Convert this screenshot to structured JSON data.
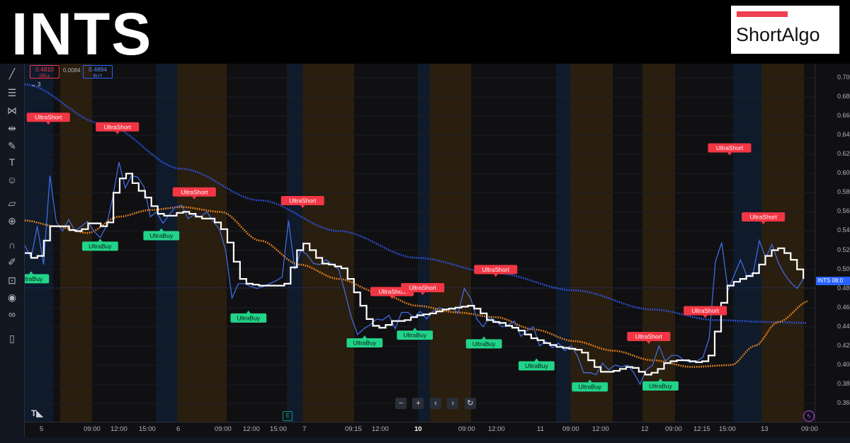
{
  "header": {
    "title": "INTS",
    "logo_text": "ShortAlgo"
  },
  "colors": {
    "ultra_short": "#f23645",
    "ultra_buy": "#22d38a",
    "white_line": "#ffffff",
    "blue_line": "#3f6be0",
    "orange_ma": "#f2891f",
    "blue_ma": "#2f55e5",
    "session_amber": "#2a1e0e",
    "session_blue": "#0f1a2b"
  },
  "trade_panel": {
    "sell_price": "0.4810",
    "sell_label": "SELL",
    "spread": "0.0084",
    "buy_price": "0.4894",
    "buy_label": "BUY",
    "indicators_count": "3"
  },
  "price_label": {
    "symbol": "INTS",
    "value": "08:0"
  },
  "chart_controls": [
    "−",
    "+",
    "‹",
    "›",
    "↻"
  ],
  "toolbar_icons": [
    "crosshair-icon",
    "trendline-icon",
    "fib-icon",
    "pattern-icon",
    "measure-icon",
    "brush-icon",
    "text-icon",
    "emoji-icon",
    "ruler-icon",
    "zoom-icon",
    "magnet-icon",
    "lock-drawing-icon",
    "lock-icon",
    "eye-icon",
    "link-icon",
    "trash-icon"
  ],
  "chart_data": {
    "type": "line",
    "y_ticks": [
      "0.700",
      "0.680",
      "0.660",
      "0.640",
      "0.620",
      "0.600",
      "0.580",
      "0.560",
      "0.540",
      "0.520",
      "0.500",
      "0.480",
      "0.460",
      "0.440",
      "0.420",
      "0.400",
      "0.380",
      "0.360"
    ],
    "ylim": [
      0.35,
      0.71
    ],
    "x_ticks": [
      {
        "label": "5",
        "bold": false
      },
      {
        "label": "09:00",
        "bold": false
      },
      {
        "label": "12:00",
        "bold": false
      },
      {
        "label": "15:00",
        "bold": false
      },
      {
        "label": "6",
        "bold": false
      },
      {
        "label": "09:00",
        "bold": false
      },
      {
        "label": "12:00",
        "bold": false
      },
      {
        "label": "15:00",
        "bold": false
      },
      {
        "label": "7",
        "bold": false
      },
      {
        "label": "09:15",
        "bold": false
      },
      {
        "label": "12:00",
        "bold": false
      },
      {
        "label": "10",
        "bold": true
      },
      {
        "label": "09:00",
        "bold": false
      },
      {
        "label": "12:00",
        "bold": false
      },
      {
        "label": "11",
        "bold": false
      },
      {
        "label": "09:00",
        "bold": false
      },
      {
        "label": "12:00",
        "bold": false
      },
      {
        "label": "12",
        "bold": false
      },
      {
        "label": "09:00",
        "bold": false
      },
      {
        "label": "12:15",
        "bold": false
      },
      {
        "label": "15:00",
        "bold": false
      },
      {
        "label": "13",
        "bold": false
      },
      {
        "label": "09:00",
        "bold": false
      }
    ],
    "series": [
      {
        "key": "price",
        "values": [
          0.525,
          0.512,
          0.545,
          0.505,
          0.598,
          0.55,
          0.54,
          0.552,
          0.54,
          0.545,
          0.55,
          0.54,
          0.533,
          0.545,
          0.575,
          0.612,
          0.585,
          0.598,
          0.596,
          0.586,
          0.555,
          0.56,
          0.548,
          0.557,
          0.565,
          0.567,
          0.553,
          0.557,
          0.555,
          0.56,
          0.55,
          0.542,
          0.52,
          0.47,
          0.485,
          0.485,
          0.482,
          0.48,
          0.482,
          0.485,
          0.488,
          0.492,
          0.551,
          0.5,
          0.52,
          0.515,
          0.506,
          0.505,
          0.51,
          0.505,
          0.5,
          0.476,
          0.45,
          0.432,
          0.438,
          0.442,
          0.448,
          0.447,
          0.452,
          0.438,
          0.455,
          0.455,
          0.45,
          0.456,
          0.448,
          0.456,
          0.46,
          0.458,
          0.46,
          0.454,
          0.48,
          0.47,
          0.448,
          0.44,
          0.45,
          0.446,
          0.44,
          0.442,
          0.446,
          0.43,
          0.436,
          0.44,
          0.42,
          0.425,
          0.418,
          0.423,
          0.415,
          0.42,
          0.41,
          0.392,
          0.392,
          0.39,
          0.402,
          0.395,
          0.4,
          0.398,
          0.4,
          0.392,
          0.38,
          0.395,
          0.4,
          0.42,
          0.404,
          0.41,
          0.41,
          0.405,
          0.403,
          0.404,
          0.408,
          0.428,
          0.508,
          0.528,
          0.478,
          0.494,
          0.51,
          0.493,
          0.496,
          0.53,
          0.512,
          0.526,
          0.507,
          0.495,
          0.486,
          0.48,
          0.49
        ]
      },
      {
        "key": "smooth",
        "values": [
          0.517,
          0.512,
          0.514,
          0.53,
          0.545,
          0.545,
          0.545,
          0.541,
          0.54,
          0.542,
          0.548,
          0.548,
          0.545,
          0.549,
          0.58,
          0.595,
          0.6,
          0.59,
          0.582,
          0.575,
          0.566,
          0.558,
          0.556,
          0.556,
          0.559,
          0.56,
          0.558,
          0.555,
          0.553,
          0.553,
          0.549,
          0.542,
          0.528,
          0.508,
          0.49,
          0.485,
          0.484,
          0.483,
          0.483,
          0.483,
          0.483,
          0.485,
          0.502,
          0.52,
          0.527,
          0.52,
          0.512,
          0.506,
          0.505,
          0.503,
          0.501,
          0.49,
          0.476,
          0.462,
          0.448,
          0.441,
          0.439,
          0.442,
          0.446,
          0.446,
          0.447,
          0.45,
          0.452,
          0.453,
          0.454,
          0.456,
          0.458,
          0.459,
          0.46,
          0.461,
          0.462,
          0.459,
          0.454,
          0.447,
          0.445,
          0.444,
          0.441,
          0.439,
          0.436,
          0.432,
          0.428,
          0.426,
          0.423,
          0.421,
          0.419,
          0.418,
          0.417,
          0.416,
          0.413,
          0.405,
          0.398,
          0.393,
          0.393,
          0.394,
          0.396,
          0.398,
          0.397,
          0.393,
          0.39,
          0.392,
          0.396,
          0.402,
          0.404,
          0.405,
          0.405,
          0.404,
          0.403,
          0.404,
          0.41,
          0.435,
          0.465,
          0.483,
          0.487,
          0.49,
          0.493,
          0.496,
          0.505,
          0.514,
          0.52,
          0.522,
          0.517,
          0.51,
          0.5,
          0.49
        ]
      },
      {
        "key": "ma_slow",
        "anchors": [
          [
            0,
            0.693
          ],
          [
            0.1,
            0.652
          ],
          [
            0.2,
            0.605
          ],
          [
            0.3,
            0.572
          ],
          [
            0.4,
            0.54
          ],
          [
            0.5,
            0.512
          ],
          [
            0.6,
            0.496
          ],
          [
            0.7,
            0.478
          ],
          [
            0.8,
            0.458
          ],
          [
            0.88,
            0.447
          ],
          [
            0.95,
            0.445
          ],
          [
            1.0,
            0.444
          ]
        ]
      },
      {
        "key": "ma_fast",
        "anchors": [
          [
            0,
            0.551
          ],
          [
            0.04,
            0.545
          ],
          [
            0.08,
            0.538
          ],
          [
            0.12,
            0.555
          ],
          [
            0.16,
            0.562
          ],
          [
            0.2,
            0.565
          ],
          [
            0.25,
            0.56
          ],
          [
            0.3,
            0.53
          ],
          [
            0.35,
            0.505
          ],
          [
            0.4,
            0.49
          ],
          [
            0.45,
            0.476
          ],
          [
            0.5,
            0.462
          ],
          [
            0.55,
            0.455
          ],
          [
            0.6,
            0.45
          ],
          [
            0.65,
            0.437
          ],
          [
            0.7,
            0.425
          ],
          [
            0.75,
            0.415
          ],
          [
            0.8,
            0.405
          ],
          [
            0.85,
            0.398
          ],
          [
            0.9,
            0.4
          ],
          [
            0.93,
            0.42
          ],
          [
            0.96,
            0.445
          ],
          [
            1.0,
            0.467
          ]
        ]
      }
    ],
    "annotations": [
      {
        "text": "UltraShort",
        "type": "short",
        "t": 0.03,
        "y": 0.654
      },
      {
        "text": "UltraShort",
        "type": "short",
        "t": 0.118,
        "y": 0.644
      },
      {
        "text": "UltraShort",
        "type": "short",
        "t": 0.216,
        "y": 0.576
      },
      {
        "text": "UltraShort",
        "type": "short",
        "t": 0.354,
        "y": 0.567
      },
      {
        "text": "UltraShort",
        "type": "short",
        "t": 0.468,
        "y": 0.472
      },
      {
        "text": "UltraShort",
        "type": "short",
        "t": 0.507,
        "y": 0.476
      },
      {
        "text": "UltraShort",
        "type": "short",
        "t": 0.6,
        "y": 0.495
      },
      {
        "text": "UltraShort",
        "type": "short",
        "t": 0.795,
        "y": 0.425
      },
      {
        "text": "UltraShort",
        "type": "short",
        "t": 0.867,
        "y": 0.452
      },
      {
        "text": "UltraShort",
        "type": "short",
        "t": 0.898,
        "y": 0.622
      },
      {
        "text": "UltraShort",
        "type": "short",
        "t": 0.941,
        "y": 0.55
      },
      {
        "text": "UltraBuy",
        "type": "buy",
        "t": 0.008,
        "y": 0.495
      },
      {
        "text": "UltraBuy",
        "type": "buy",
        "t": 0.096,
        "y": 0.529
      },
      {
        "text": "UltraBuy",
        "type": "buy",
        "t": 0.174,
        "y": 0.54
      },
      {
        "text": "UltraBuy",
        "type": "buy",
        "t": 0.285,
        "y": 0.454
      },
      {
        "text": "UltraBuy",
        "type": "buy",
        "t": 0.433,
        "y": 0.428
      },
      {
        "text": "UltraBuy",
        "type": "buy",
        "t": 0.497,
        "y": 0.436
      },
      {
        "text": "UltraBuy",
        "type": "buy",
        "t": 0.585,
        "y": 0.427
      },
      {
        "text": "UltraBuy",
        "type": "buy",
        "t": 0.652,
        "y": 0.404
      },
      {
        "text": "UltraBuy",
        "type": "buy",
        "t": 0.72,
        "y": 0.382
      },
      {
        "text": "UltraBuy",
        "type": "buy",
        "t": 0.81,
        "y": 0.383
      }
    ]
  }
}
